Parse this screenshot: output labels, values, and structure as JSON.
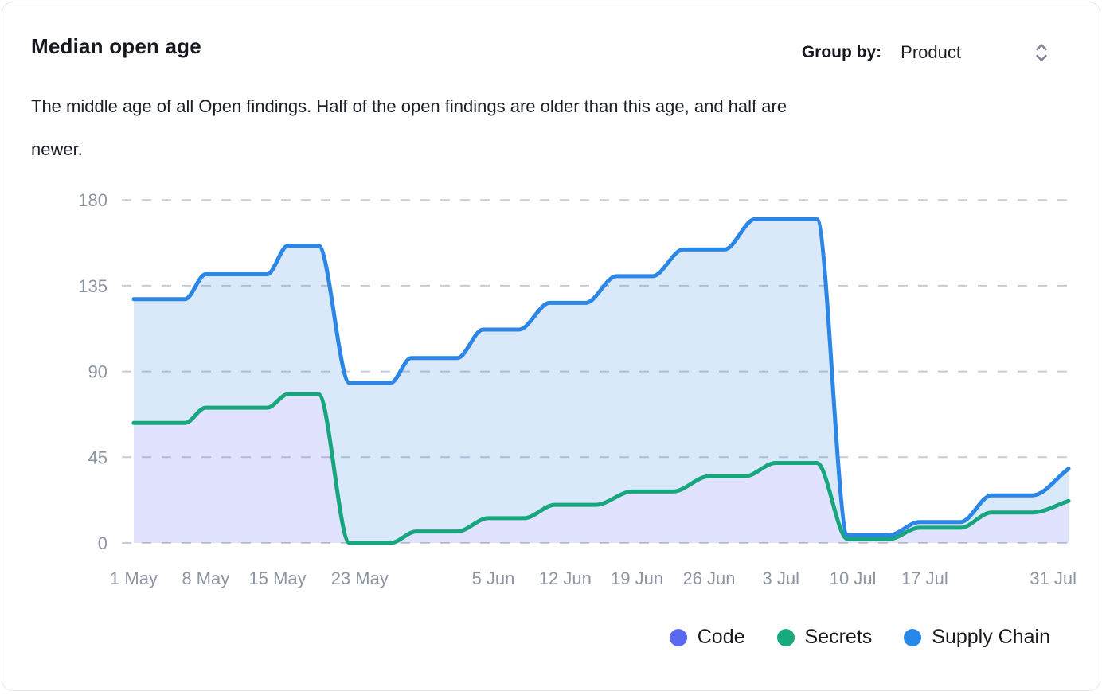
{
  "header": {
    "title": "Median open age",
    "group_by_label": "Group by:",
    "group_by_value": "Product"
  },
  "description": {
    "line1": "The middle age of all Open findings. Half of the open findings are older than this age, and half are",
    "line2": "newer."
  },
  "legend": {
    "items": [
      {
        "label": "Code",
        "color": "#5b68f0"
      },
      {
        "label": "Secrets",
        "color": "#18a97e"
      },
      {
        "label": "Supply Chain",
        "color": "#2688e9"
      }
    ]
  },
  "chart_data": {
    "type": "area",
    "title": "Median open age",
    "xlabel": "",
    "ylabel": "",
    "x_axis": {
      "unit": "days since 1 May",
      "ticks": [
        {
          "label": "1 May",
          "day": 0
        },
        {
          "label": "8 May",
          "day": 7
        },
        {
          "label": "15 May",
          "day": 14
        },
        {
          "label": "23 May",
          "day": 22
        },
        {
          "label": "5 Jun",
          "day": 35
        },
        {
          "label": "12 Jun",
          "day": 42
        },
        {
          "label": "19 Jun",
          "day": 49
        },
        {
          "label": "26 Jun",
          "day": 56
        },
        {
          "label": "3 Jul",
          "day": 63
        },
        {
          "label": "10 Jul",
          "day": 70
        },
        {
          "label": "17 Jul",
          "day": 77
        },
        {
          "label": "31 Jul",
          "day": 91
        }
      ]
    },
    "y_axis": {
      "ticks": [
        0,
        45,
        90,
        135,
        180
      ],
      "min": 0,
      "max": 186
    },
    "grid": {
      "horizontal": true,
      "style": "dashed"
    },
    "legend_position": "bottom-right",
    "series": [
      {
        "name": "Code",
        "line_color": "#5b68f0",
        "fill": "rgba(95,99,242,0.19)",
        "fills_down_to": "zero",
        "note": "line coincides with Secrets series (hidden beneath it); only its fill is visible",
        "points": [
          [
            0,
            63
          ],
          [
            5,
            63
          ],
          [
            7,
            71
          ],
          [
            13,
            71
          ],
          [
            15,
            78
          ],
          [
            18,
            78
          ],
          [
            21,
            0
          ],
          [
            25,
            0
          ],
          [
            27.5,
            6
          ],
          [
            31.5,
            6
          ],
          [
            34.5,
            13
          ],
          [
            38,
            13
          ],
          [
            41,
            20
          ],
          [
            45,
            20
          ],
          [
            48.5,
            27
          ],
          [
            52.5,
            27
          ],
          [
            56,
            35
          ],
          [
            59.5,
            35
          ],
          [
            62.5,
            42
          ],
          [
            66.5,
            42
          ],
          [
            69.5,
            2
          ],
          [
            73.5,
            2
          ],
          [
            76.5,
            8
          ],
          [
            80.5,
            8
          ],
          [
            83.5,
            16
          ],
          [
            87.5,
            16
          ],
          [
            91,
            22
          ]
        ]
      },
      {
        "name": "Secrets",
        "line_color": "#17a67d",
        "fill": "none",
        "points": [
          [
            0,
            63
          ],
          [
            5,
            63
          ],
          [
            7,
            71
          ],
          [
            13,
            71
          ],
          [
            15,
            78
          ],
          [
            18,
            78
          ],
          [
            21,
            0
          ],
          [
            25,
            0
          ],
          [
            27.5,
            6
          ],
          [
            31.5,
            6
          ],
          [
            34.5,
            13
          ],
          [
            38,
            13
          ],
          [
            41,
            20
          ],
          [
            45,
            20
          ],
          [
            48.5,
            27
          ],
          [
            52.5,
            27
          ],
          [
            56,
            35
          ],
          [
            59.5,
            35
          ],
          [
            62.5,
            42
          ],
          [
            66.5,
            42
          ],
          [
            69.5,
            2
          ],
          [
            73.5,
            2
          ],
          [
            76.5,
            8
          ],
          [
            80.5,
            8
          ],
          [
            83.5,
            16
          ],
          [
            87.5,
            16
          ],
          [
            91,
            22
          ]
        ]
      },
      {
        "name": "Supply Chain",
        "line_color": "#2b86e6",
        "fill": "rgba(44,134,229,0.18)",
        "fills_down_to": "Secrets",
        "points": [
          [
            0,
            128
          ],
          [
            5,
            128
          ],
          [
            7,
            141
          ],
          [
            13,
            141
          ],
          [
            15,
            156
          ],
          [
            18,
            156
          ],
          [
            21,
            84
          ],
          [
            25,
            84
          ],
          [
            27,
            97
          ],
          [
            31.5,
            97
          ],
          [
            34,
            112
          ],
          [
            37.5,
            112
          ],
          [
            40.5,
            126
          ],
          [
            44,
            126
          ],
          [
            47,
            140
          ],
          [
            50.5,
            140
          ],
          [
            53.5,
            154
          ],
          [
            57.5,
            154
          ],
          [
            60.5,
            170
          ],
          [
            66.5,
            170
          ],
          [
            69.5,
            4
          ],
          [
            73.5,
            4
          ],
          [
            76.5,
            11
          ],
          [
            80.5,
            11
          ],
          [
            83.5,
            25
          ],
          [
            87.5,
            25
          ],
          [
            91,
            39
          ]
        ]
      }
    ]
  }
}
